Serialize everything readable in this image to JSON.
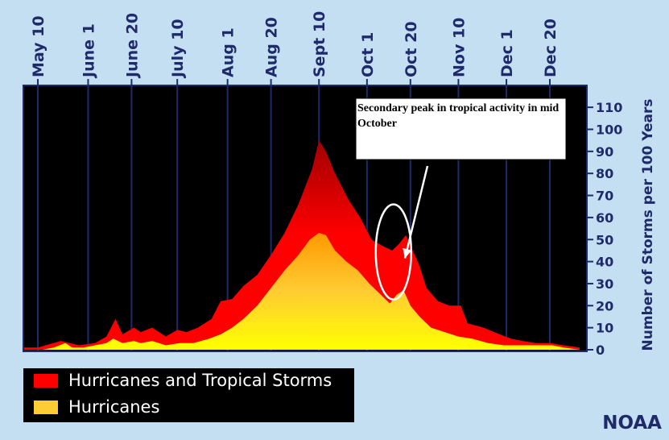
{
  "chart_data": {
    "type": "area",
    "title": "",
    "xlabel": "",
    "ylabel": "Number of Storms per 100 Years",
    "ylim": [
      0,
      112
    ],
    "yticks": [
      0,
      10,
      20,
      30,
      40,
      50,
      60,
      70,
      80,
      90,
      100,
      110
    ],
    "x_axis_position": "top",
    "grid": "vertical lines at labeled dates",
    "x_ticks": [
      {
        "label": "May 10",
        "day": 10
      },
      {
        "label": "June 1",
        "day": 32
      },
      {
        "label": "June 20",
        "day": 51
      },
      {
        "label": "July 10",
        "day": 71
      },
      {
        "label": "Aug 1",
        "day": 93
      },
      {
        "label": "Aug 20",
        "day": 112
      },
      {
        "label": "Sept 10",
        "day": 133
      },
      {
        "label": "Oct 1",
        "day": 154
      },
      {
        "label": "Oct 20",
        "day": 173
      },
      {
        "label": "Nov 10",
        "day": 194
      },
      {
        "label": "Dec 1",
        "day": 215
      },
      {
        "label": "Dec 20",
        "day": 234
      }
    ],
    "series": [
      {
        "name": "Hurricanes and Tropical Storms",
        "color": "#ff0000",
        "peak_color": "#a00000",
        "points": [
          [
            0,
            1
          ],
          [
            10,
            1
          ],
          [
            20,
            4
          ],
          [
            28,
            2
          ],
          [
            35,
            3
          ],
          [
            40,
            6
          ],
          [
            44,
            14
          ],
          [
            47,
            7
          ],
          [
            52,
            10
          ],
          [
            55,
            8
          ],
          [
            60,
            10
          ],
          [
            66,
            6
          ],
          [
            71,
            9
          ],
          [
            75,
            8
          ],
          [
            80,
            10
          ],
          [
            86,
            14
          ],
          [
            90,
            22
          ],
          [
            95,
            23
          ],
          [
            100,
            29
          ],
          [
            106,
            34
          ],
          [
            112,
            43
          ],
          [
            118,
            53
          ],
          [
            124,
            66
          ],
          [
            130,
            82
          ],
          [
            133,
            95
          ],
          [
            136,
            90
          ],
          [
            140,
            80
          ],
          [
            146,
            68
          ],
          [
            151,
            60
          ],
          [
            156,
            50
          ],
          [
            161,
            47
          ],
          [
            165,
            45
          ],
          [
            168,
            48
          ],
          [
            171,
            52
          ],
          [
            174,
            45
          ],
          [
            177,
            38
          ],
          [
            180,
            28
          ],
          [
            185,
            22
          ],
          [
            190,
            20
          ],
          [
            195,
            20
          ],
          [
            198,
            12
          ],
          [
            205,
            10
          ],
          [
            212,
            7
          ],
          [
            217,
            5
          ],
          [
            222,
            4
          ],
          [
            228,
            3
          ],
          [
            234,
            3
          ],
          [
            240,
            2
          ],
          [
            247,
            1
          ]
        ]
      },
      {
        "name": "Hurricanes",
        "color": "#ffcc33",
        "peak_color": "#ff9900",
        "points": [
          [
            0,
            0
          ],
          [
            12,
            0
          ],
          [
            17,
            1
          ],
          [
            22,
            3
          ],
          [
            25,
            1
          ],
          [
            30,
            1
          ],
          [
            35,
            2
          ],
          [
            40,
            3
          ],
          [
            43,
            5
          ],
          [
            47,
            3
          ],
          [
            52,
            4
          ],
          [
            55,
            3
          ],
          [
            60,
            4
          ],
          [
            66,
            2
          ],
          [
            72,
            3
          ],
          [
            78,
            3
          ],
          [
            85,
            5
          ],
          [
            90,
            7
          ],
          [
            95,
            10
          ],
          [
            100,
            14
          ],
          [
            106,
            20
          ],
          [
            112,
            28
          ],
          [
            118,
            36
          ],
          [
            124,
            43
          ],
          [
            129,
            50
          ],
          [
            133,
            53
          ],
          [
            136,
            52
          ],
          [
            140,
            45
          ],
          [
            145,
            40
          ],
          [
            150,
            36
          ],
          [
            155,
            30
          ],
          [
            160,
            25
          ],
          [
            164,
            21
          ],
          [
            167,
            25
          ],
          [
            170,
            27
          ],
          [
            173,
            20
          ],
          [
            177,
            15
          ],
          [
            182,
            10
          ],
          [
            188,
            8
          ],
          [
            194,
            6
          ],
          [
            200,
            5
          ],
          [
            207,
            3
          ],
          [
            214,
            2
          ],
          [
            220,
            2
          ],
          [
            228,
            2
          ],
          [
            235,
            2
          ],
          [
            240,
            1
          ],
          [
            247,
            0
          ]
        ]
      }
    ],
    "annotation": {
      "text": "Secondary peak in tropical activity in mid October",
      "target_day": 167,
      "target_value": 40
    },
    "legend_position": "bottom-left"
  },
  "credit": "NOAA"
}
